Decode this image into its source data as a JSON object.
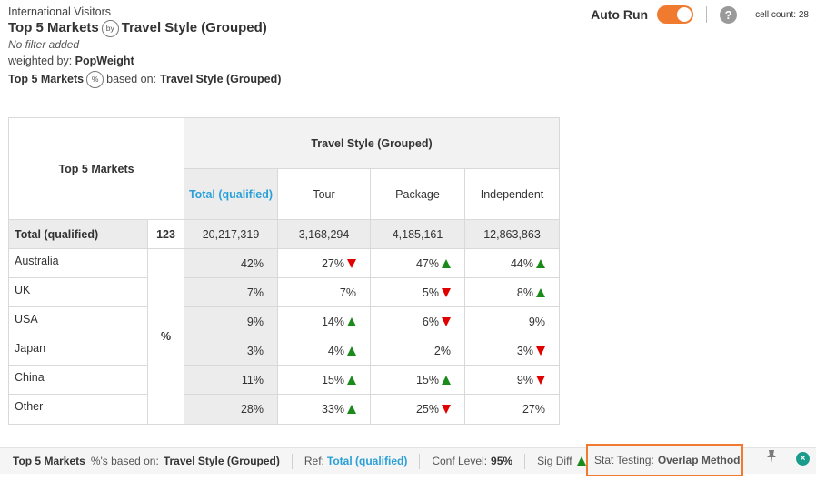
{
  "header": {
    "dataset": "International Visitors",
    "row_var": "Top 5 Markets",
    "by_icon": "by",
    "col_var": "Travel Style (Grouped)",
    "filter": "No filter added",
    "weighted_label": "weighted by:",
    "weight_var": "PopWeight",
    "pct_row_var": "Top 5 Markets",
    "pct_icon": "%",
    "based_on_label": "based on:",
    "based_on_var": "Travel Style (Grouped)"
  },
  "controls": {
    "auto_run_label": "Auto Run",
    "auto_run_on": true,
    "help_icon": "?",
    "cell_count_label": "cell count: 28"
  },
  "table": {
    "row_header": "Top 5 Markets",
    "col_header": "Travel Style (Grouped)",
    "columns": [
      "Total (qualified)",
      "Tour",
      "Package",
      "Independent"
    ],
    "total_row": {
      "label": "Total (qualified)",
      "base": "123",
      "values": [
        "20,217,319",
        "3,168,294",
        "4,185,161",
        "12,863,863"
      ]
    },
    "pct_label": "%",
    "rows": [
      {
        "label": "Australia",
        "cells": [
          {
            "v": "42%",
            "sig": ""
          },
          {
            "v": "27%",
            "sig": "down"
          },
          {
            "v": "47%",
            "sig": "up"
          },
          {
            "v": "44%",
            "sig": "up"
          }
        ]
      },
      {
        "label": "UK",
        "cells": [
          {
            "v": "7%",
            "sig": ""
          },
          {
            "v": "7%",
            "sig": ""
          },
          {
            "v": "5%",
            "sig": "down"
          },
          {
            "v": "8%",
            "sig": "up"
          }
        ]
      },
      {
        "label": "USA",
        "cells": [
          {
            "v": "9%",
            "sig": ""
          },
          {
            "v": "14%",
            "sig": "up"
          },
          {
            "v": "6%",
            "sig": "down"
          },
          {
            "v": "9%",
            "sig": ""
          }
        ]
      },
      {
        "label": "Japan",
        "cells": [
          {
            "v": "3%",
            "sig": ""
          },
          {
            "v": "4%",
            "sig": "up"
          },
          {
            "v": "2%",
            "sig": ""
          },
          {
            "v": "3%",
            "sig": "down"
          }
        ]
      },
      {
        "label": "China",
        "cells": [
          {
            "v": "11%",
            "sig": ""
          },
          {
            "v": "15%",
            "sig": "up"
          },
          {
            "v": "15%",
            "sig": "up"
          },
          {
            "v": "9%",
            "sig": "down"
          }
        ]
      },
      {
        "label": "Other",
        "cells": [
          {
            "v": "28%",
            "sig": ""
          },
          {
            "v": "33%",
            "sig": "up"
          },
          {
            "v": "25%",
            "sig": "down"
          },
          {
            "v": "27%",
            "sig": ""
          }
        ]
      }
    ]
  },
  "footer": {
    "row_var": "Top 5 Markets",
    "pct_based_label": "%'s based on:",
    "col_var": "Travel Style (Grouped)",
    "ref_label": "Ref:",
    "ref_value": "Total (qualified)",
    "conf_label": "Conf Level:",
    "conf_value": "95%",
    "sig_label": "Sig Diff",
    "stat_label": "Stat Testing:",
    "stat_value": "Overlap Method",
    "pin_icon": "pin-icon",
    "close_icon": "close-icon",
    "close_glyph": "×"
  },
  "colors": {
    "accent": "#f07a2d",
    "ref_blue": "#2aa0d8",
    "sig_up": "#1a8a1a",
    "sig_down": "#e00000",
    "close_teal": "#1a9c8c"
  }
}
